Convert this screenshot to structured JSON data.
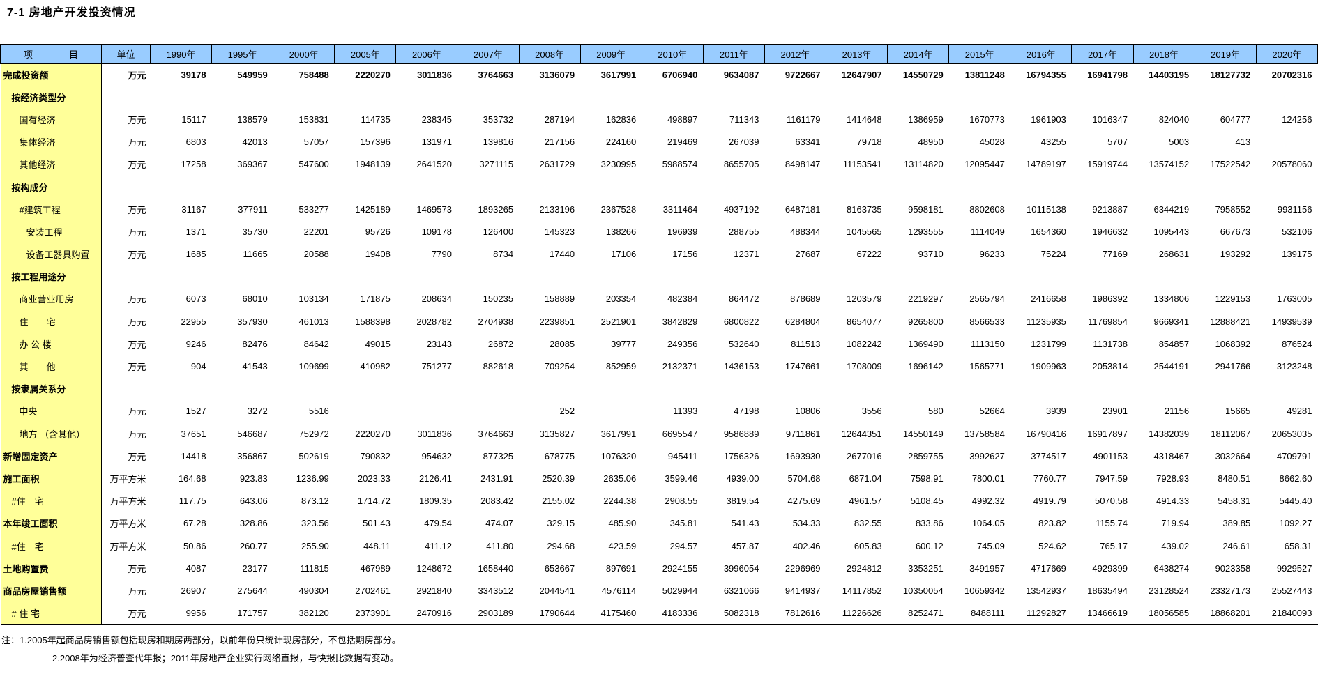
{
  "title": "7-1  房地产开发投资情况",
  "colors": {
    "header_bg": "#99CCFF",
    "label_bg": "#FFFF99",
    "border": "#000000"
  },
  "table": {
    "item_header": "项　　　　目",
    "unit_header": "单位",
    "years": [
      "1990年",
      "1995年",
      "2000年",
      "2005年",
      "2006年",
      "2007年",
      "2008年",
      "2009年",
      "2010年",
      "2011年",
      "2012年",
      "2013年",
      "2014年",
      "2015年",
      "2016年",
      "2017年",
      "2018年",
      "2019年",
      "2020年"
    ],
    "rows": [
      {
        "label": "完成投资额",
        "unit": "万元",
        "indent": 0,
        "bold": true,
        "bold_values": true,
        "values": [
          "39178",
          "549959",
          "758488",
          "2220270",
          "3011836",
          "3764663",
          "3136079",
          "3617991",
          "6706940",
          "9634087",
          "9722667",
          "12647907",
          "14550729",
          "13811248",
          "16794355",
          "16941798",
          "14403195",
          "18127732",
          "20702316"
        ]
      },
      {
        "label": "按经济类型分",
        "unit": "",
        "indent": 1,
        "bold": true,
        "values": []
      },
      {
        "label": "国有经济",
        "unit": "万元",
        "indent": 2,
        "bold": false,
        "values": [
          "15117",
          "138579",
          "153831",
          "114735",
          "238345",
          "353732",
          "287194",
          "162836",
          "498897",
          "711343",
          "1161179",
          "1414648",
          "1386959",
          "1670773",
          "1961903",
          "1016347",
          "824040",
          "604777",
          "124256"
        ]
      },
      {
        "label": "集体经济",
        "unit": "万元",
        "indent": 2,
        "bold": false,
        "values": [
          "6803",
          "42013",
          "57057",
          "157396",
          "131971",
          "139816",
          "217156",
          "224160",
          "219469",
          "267039",
          "63341",
          "79718",
          "48950",
          "45028",
          "43255",
          "5707",
          "5003",
          "413",
          ""
        ]
      },
      {
        "label": "其他经济",
        "unit": "万元",
        "indent": 2,
        "bold": false,
        "values": [
          "17258",
          "369367",
          "547600",
          "1948139",
          "2641520",
          "3271115",
          "2631729",
          "3230995",
          "5988574",
          "8655705",
          "8498147",
          "11153541",
          "13114820",
          "12095447",
          "14789197",
          "15919744",
          "13574152",
          "17522542",
          "20578060"
        ]
      },
      {
        "label": "按构成分",
        "unit": "",
        "indent": 1,
        "bold": true,
        "values": []
      },
      {
        "label": "#建筑工程",
        "unit": "万元",
        "indent": 2,
        "bold": false,
        "values": [
          "31167",
          "377911",
          "533277",
          "1425189",
          "1469573",
          "1893265",
          "2133196",
          "2367528",
          "3311464",
          "4937192",
          "6487181",
          "8163735",
          "9598181",
          "8802608",
          "10115138",
          "9213887",
          "6344219",
          "7958552",
          "9931156"
        ]
      },
      {
        "label": "安装工程",
        "unit": "万元",
        "indent": 3,
        "bold": false,
        "values": [
          "1371",
          "35730",
          "22201",
          "95726",
          "109178",
          "126400",
          "145323",
          "138266",
          "196939",
          "288755",
          "488344",
          "1045565",
          "1293555",
          "1114049",
          "1654360",
          "1946632",
          "1095443",
          "667673",
          "532106"
        ]
      },
      {
        "label": "设备工器具购置",
        "unit": "万元",
        "indent": 3,
        "bold": false,
        "values": [
          "1685",
          "11665",
          "20588",
          "19408",
          "7790",
          "8734",
          "17440",
          "17106",
          "17156",
          "12371",
          "27687",
          "67222",
          "93710",
          "96233",
          "75224",
          "77169",
          "268631",
          "193292",
          "139175"
        ]
      },
      {
        "label": "按工程用途分",
        "unit": "",
        "indent": 1,
        "bold": true,
        "values": []
      },
      {
        "label": "商业营业用房",
        "unit": "万元",
        "indent": 2,
        "bold": false,
        "values": [
          "6073",
          "68010",
          "103134",
          "171875",
          "208634",
          "150235",
          "158889",
          "203354",
          "482384",
          "864472",
          "878689",
          "1203579",
          "2219297",
          "2565794",
          "2416658",
          "1986392",
          "1334806",
          "1229153",
          "1763005"
        ]
      },
      {
        "label": "住　　宅",
        "unit": "万元",
        "indent": 2,
        "bold": false,
        "values": [
          "22955",
          "357930",
          "461013",
          "1588398",
          "2028782",
          "2704938",
          "2239851",
          "2521901",
          "3842829",
          "6800822",
          "6284804",
          "8654077",
          "9265800",
          "8566533",
          "11235935",
          "11769854",
          "9669341",
          "12888421",
          "14939539"
        ]
      },
      {
        "label": "办 公 楼",
        "unit": "万元",
        "indent": 2,
        "bold": false,
        "values": [
          "9246",
          "82476",
          "84642",
          "49015",
          "23143",
          "26872",
          "28085",
          "39777",
          "249356",
          "532640",
          "811513",
          "1082242",
          "1369490",
          "1113150",
          "1231799",
          "1131738",
          "854857",
          "1068392",
          "876524"
        ]
      },
      {
        "label": "其　　他",
        "unit": "万元",
        "indent": 2,
        "bold": false,
        "values": [
          "904",
          "41543",
          "109699",
          "410982",
          "751277",
          "882618",
          "709254",
          "852959",
          "2132371",
          "1436153",
          "1747661",
          "1708009",
          "1696142",
          "1565771",
          "1909963",
          "2053814",
          "2544191",
          "2941766",
          "3123248"
        ]
      },
      {
        "label": "按隶属关系分",
        "unit": "",
        "indent": 1,
        "bold": true,
        "values": []
      },
      {
        "label": "中央",
        "unit": "万元",
        "indent": 2,
        "bold": false,
        "values": [
          "1527",
          "3272",
          "5516",
          "",
          "",
          "",
          "252",
          "",
          "11393",
          "47198",
          "10806",
          "3556",
          "580",
          "52664",
          "3939",
          "23901",
          "21156",
          "15665",
          "49281"
        ]
      },
      {
        "label": "地方 （含其他）",
        "unit": "万元",
        "indent": 2,
        "bold": false,
        "values": [
          "37651",
          "546687",
          "752972",
          "2220270",
          "3011836",
          "3764663",
          "3135827",
          "3617991",
          "6695547",
          "9586889",
          "9711861",
          "12644351",
          "14550149",
          "13758584",
          "16790416",
          "16917897",
          "14382039",
          "18112067",
          "20653035"
        ]
      },
      {
        "label": "新增固定资产",
        "unit": "万元",
        "indent": 0,
        "bold": true,
        "values": [
          "14418",
          "356867",
          "502619",
          "790832",
          "954632",
          "877325",
          "678775",
          "1076320",
          "945411",
          "1756326",
          "1693930",
          "2677016",
          "2859755",
          "3992627",
          "3774517",
          "4901153",
          "4318467",
          "3032664",
          "4709791"
        ]
      },
      {
        "label": "施工面积",
        "unit": "万平方米",
        "indent": 0,
        "bold": true,
        "values": [
          "164.68",
          "923.83",
          "1236.99",
          "2023.33",
          "2126.41",
          "2431.91",
          "2520.39",
          "2635.06",
          "3599.46",
          "4939.00",
          "5704.68",
          "6871.04",
          "7598.91",
          "7800.01",
          "7760.77",
          "7947.59",
          "7928.93",
          "8480.51",
          "8662.60"
        ]
      },
      {
        "label": "#住　宅",
        "unit": "万平方米",
        "indent": 1,
        "bold": false,
        "values": [
          "117.75",
          "643.06",
          "873.12",
          "1714.72",
          "1809.35",
          "2083.42",
          "2155.02",
          "2244.38",
          "2908.55",
          "3819.54",
          "4275.69",
          "4961.57",
          "5108.45",
          "4992.32",
          "4919.79",
          "5070.58",
          "4914.33",
          "5458.31",
          "5445.40"
        ]
      },
      {
        "label": "本年竣工面积",
        "unit": "万平方米",
        "indent": 0,
        "bold": true,
        "values": [
          "67.28",
          "328.86",
          "323.56",
          "501.43",
          "479.54",
          "474.07",
          "329.15",
          "485.90",
          "345.81",
          "541.43",
          "534.33",
          "832.55",
          "833.86",
          "1064.05",
          "823.82",
          "1155.74",
          "719.94",
          "389.85",
          "1092.27"
        ]
      },
      {
        "label": "#住　宅",
        "unit": "万平方米",
        "indent": 1,
        "bold": false,
        "values": [
          "50.86",
          "260.77",
          "255.90",
          "448.11",
          "411.12",
          "411.80",
          "294.68",
          "423.59",
          "294.57",
          "457.87",
          "402.46",
          "605.83",
          "600.12",
          "745.09",
          "524.62",
          "765.17",
          "439.02",
          "246.61",
          "658.31"
        ]
      },
      {
        "label": "土地购置费",
        "unit": "万元",
        "indent": 0,
        "bold": true,
        "values": [
          "4087",
          "23177",
          "111815",
          "467989",
          "1248672",
          "1658440",
          "653667",
          "897691",
          "2924155",
          "3996054",
          "2296969",
          "2924812",
          "3353251",
          "3491957",
          "4717669",
          "4929399",
          "6438274",
          "9023358",
          "9929527"
        ]
      },
      {
        "label": "商品房屋销售额",
        "unit": "万元",
        "indent": 0,
        "bold": true,
        "values": [
          "26907",
          "275644",
          "490304",
          "2702461",
          "2921840",
          "3343512",
          "2044541",
          "4576114",
          "5029944",
          "6321066",
          "9414937",
          "14117852",
          "10350054",
          "10659342",
          "13542937",
          "18635494",
          "23128524",
          "23327173",
          "25527443"
        ]
      },
      {
        "label": "# 住 宅",
        "unit": "万元",
        "indent": 1,
        "bold": false,
        "values": [
          "9956",
          "171757",
          "382120",
          "2373901",
          "2470916",
          "2903189",
          "1790644",
          "4175460",
          "4183336",
          "5082318",
          "7812616",
          "11226626",
          "8252471",
          "8488111",
          "11292827",
          "13466619",
          "18056585",
          "18868201",
          "21840093"
        ]
      }
    ]
  },
  "notes": [
    "注：1.2005年起商品房销售额包括现房和期房两部分，以前年份只统计现房部分，不包括期房部分。",
    "2.2008年为经济普查代年报；2011年房地产企业实行网络直报，与快报比数据有变动。"
  ]
}
